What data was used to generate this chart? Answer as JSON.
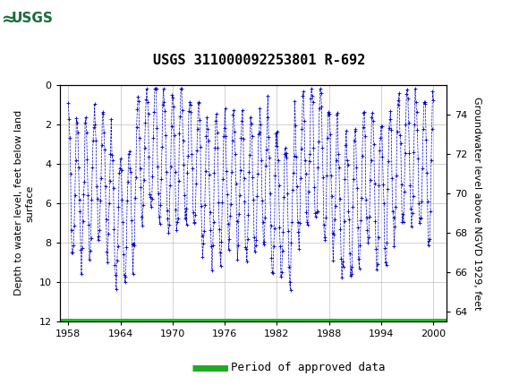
{
  "title": "USGS 311000092253801 R-692",
  "ylabel_left": "Depth to water level, feet below land\nsurface",
  "ylabel_right": "Groundwater level above NGVD 1929, feet",
  "xlim": [
    1957.0,
    2001.5
  ],
  "ylim_left": [
    12,
    0
  ],
  "ylim_right": [
    63.5,
    75.5
  ],
  "xticks": [
    1958,
    1964,
    1970,
    1976,
    1982,
    1988,
    1994,
    2000
  ],
  "yticks_left": [
    0,
    2,
    4,
    6,
    8,
    10,
    12
  ],
  "yticks_right": [
    64,
    66,
    68,
    70,
    72,
    74
  ],
  "header_color": "#1a6b3c",
  "plot_bg": "#ffffff",
  "data_color": "#0000cc",
  "legend_line_color": "#22aa22",
  "legend_label": "Period of approved data",
  "title_fontsize": 11,
  "axis_fontsize": 8,
  "tick_fontsize": 8,
  "legend_fontsize": 9,
  "marker": "+",
  "marker_size": 2.5,
  "line_style": "--",
  "line_width": 0.5,
  "green_bar_color": "#22bb22"
}
